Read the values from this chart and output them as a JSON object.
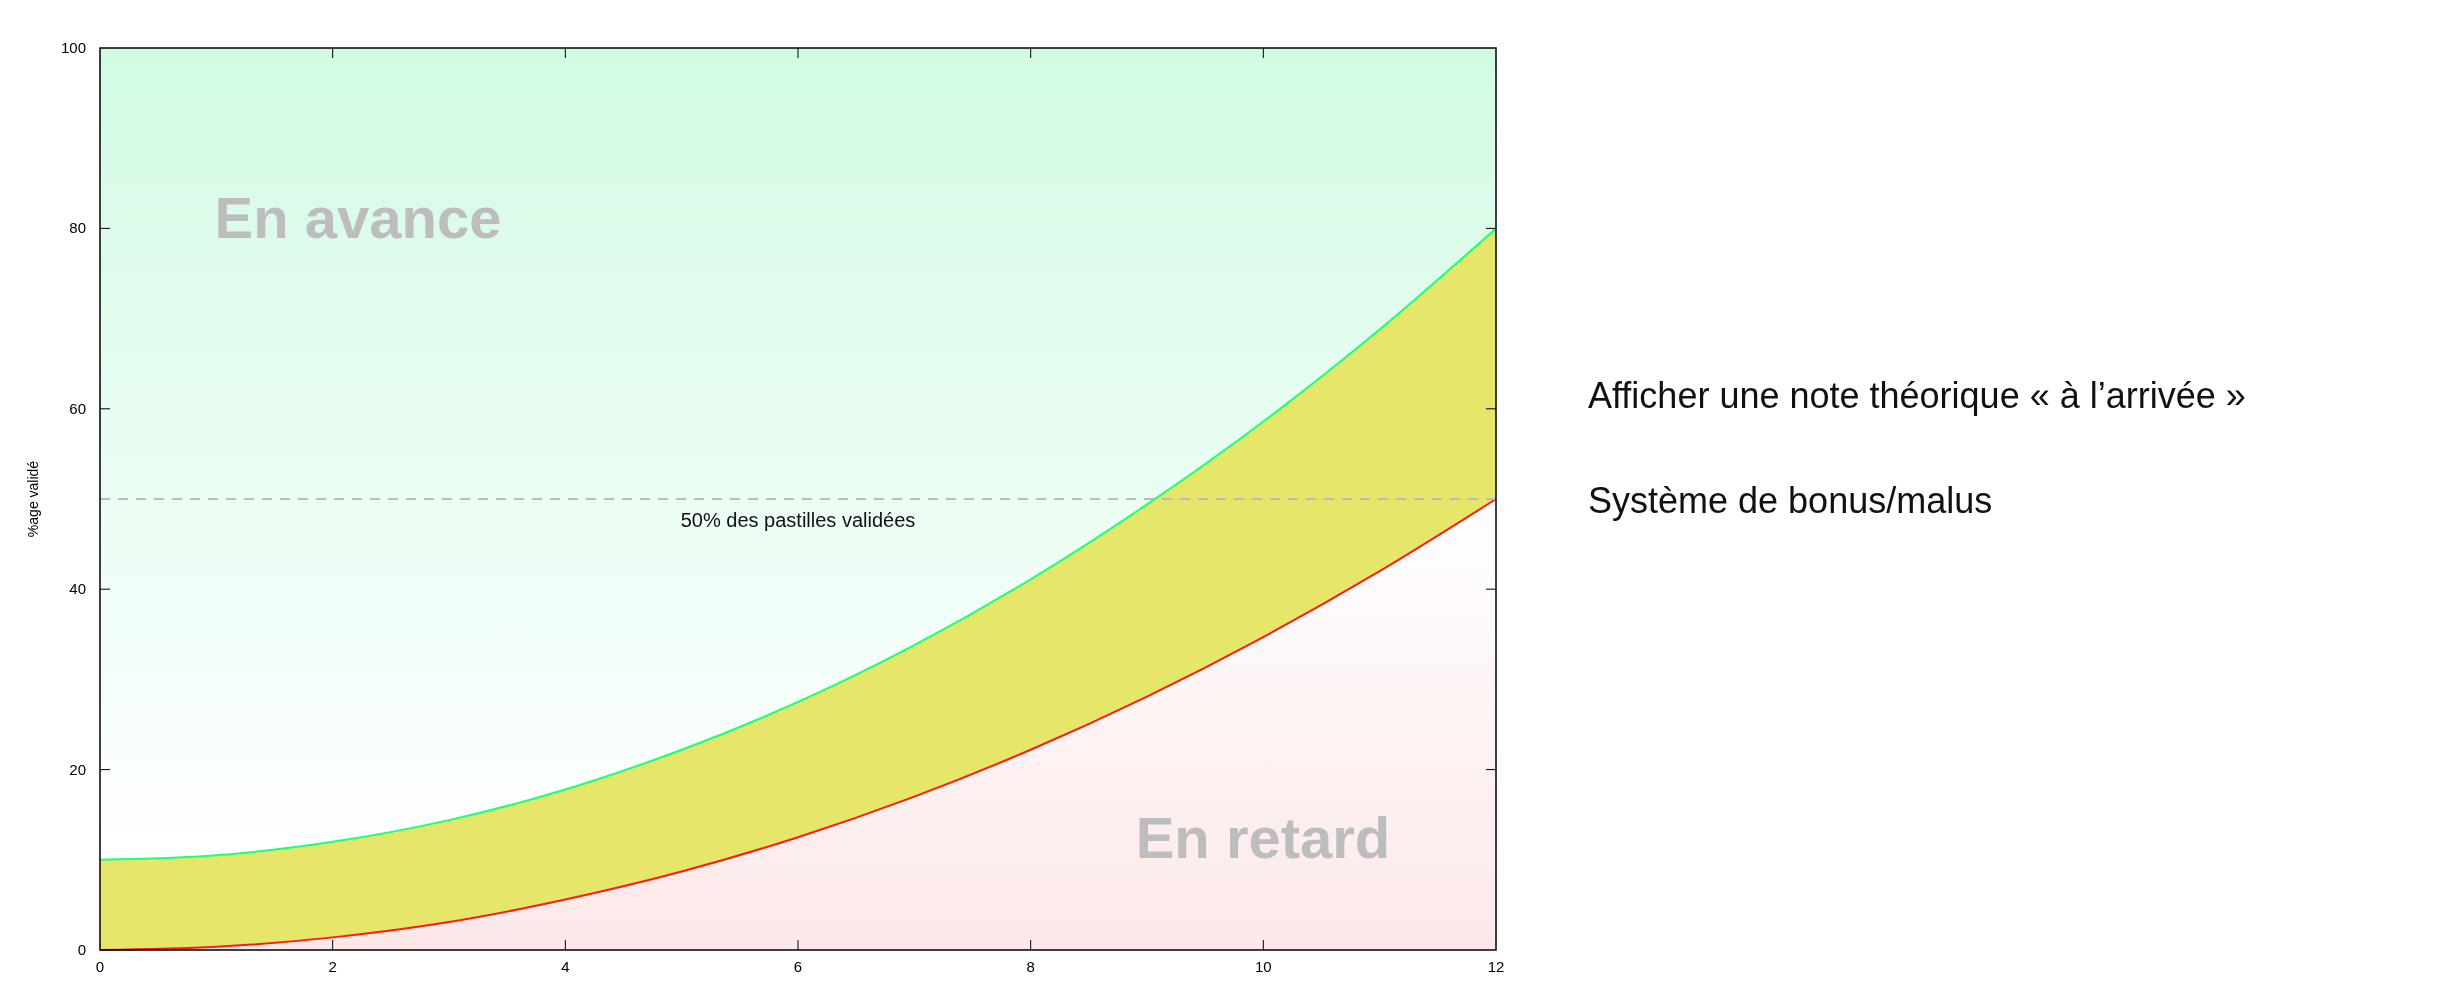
{
  "chart_data": {
    "type": "area",
    "stacked": true,
    "ylabel": "%age validé",
    "x": [
      0,
      1,
      2,
      3,
      4,
      5,
      6,
      7,
      8,
      9,
      10,
      11,
      12
    ],
    "series": [
      {
        "color": "#fde8e8",
        "values": [
          0,
          0.35,
          1.4,
          3.1,
          5.6,
          8.7,
          12.5,
          17,
          22.2,
          28.1,
          34.7,
          42,
          50
        ]
      },
      {
        "color": "#e6e66a",
        "values": [
          10,
          10.15,
          10.6,
          11.3,
          12.2,
          13.5,
          15,
          16.8,
          18.9,
          21.3,
          23.9,
          26.8,
          30
        ]
      },
      {
        "color": "#d2fbe4",
        "values": [
          90,
          89.5,
          88,
          85.6,
          82.2,
          77.8,
          72.5,
          66.2,
          58.9,
          50.6,
          41.4,
          31.2,
          20
        ]
      }
    ],
    "xlim": [
      0,
      12
    ],
    "xticks": [
      0,
      2,
      4,
      6,
      8,
      10,
      12
    ],
    "ylim": [
      0,
      100
    ],
    "yticks": [
      0,
      20,
      40,
      60,
      80,
      100
    ],
    "ref_lines": [
      {
        "axis": "y",
        "value": 50,
        "label": "50% des pastilles validées",
        "color": "#bbbbbb",
        "line_style": "dashed"
      }
    ],
    "annotations": [
      "En avance",
      "En retard",
      "Afficher une note théorique « à l’arrivée »",
      "Système de bonus/malus"
    ]
  }
}
